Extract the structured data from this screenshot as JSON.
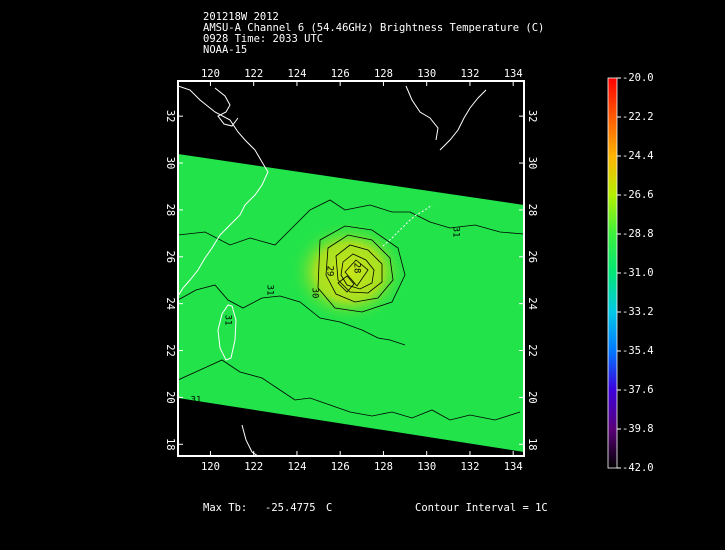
{
  "header": {
    "line1": "201218W 2012",
    "line2": "AMSU-A Channel 6 (54.46GHz) Brightness Temperature (C)",
    "line3": "0928 Time: 2033 UTC",
    "line4": "NOAA-15"
  },
  "map": {
    "lon_ticks": [
      "120",
      "122",
      "124",
      "126",
      "128",
      "130",
      "132",
      "134"
    ],
    "lat_ticks": [
      "18",
      "20",
      "22",
      "24",
      "26",
      "28",
      "30",
      "32"
    ],
    "lon_range": [
      118.5,
      134.5
    ],
    "lat_range": [
      17.5,
      33.5
    ],
    "contour_labels": [
      "31",
      "31",
      "31",
      "31",
      "30",
      "29",
      "28"
    ],
    "colors": {
      "background": "#000000",
      "coastline": "#ffffff",
      "swath": "#22e34a",
      "warm_core": "#a6e021",
      "contour": "#000000"
    }
  },
  "colorbar": {
    "labels": [
      "-20.0",
      "-22.2",
      "-24.4",
      "-26.6",
      "-28.8",
      "-31.0",
      "-33.2",
      "-35.4",
      "-37.6",
      "-39.8",
      "-42.0"
    ],
    "range": [
      -42.0,
      -20.0
    ]
  },
  "footer": {
    "max_tb_label": "Max Tb:",
    "max_tb_value": "-25.4775",
    "max_tb_unit": "C",
    "contour_interval": "Contour Interval = 1C"
  }
}
